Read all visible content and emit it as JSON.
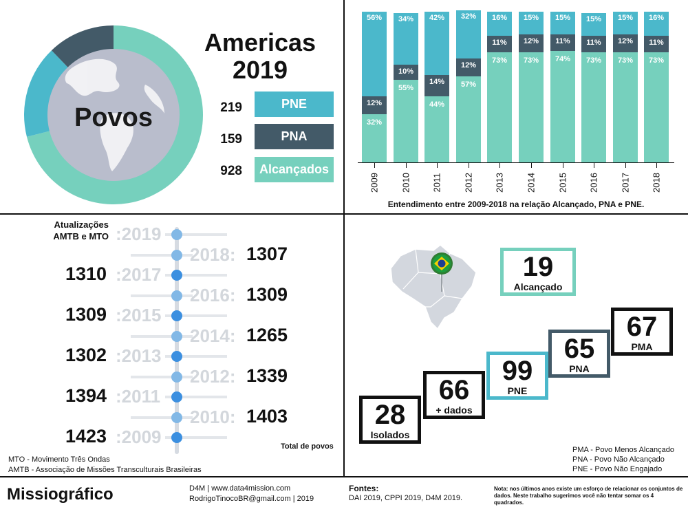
{
  "summary": {
    "title_line1": "Americas",
    "title_line2": "2019",
    "center_label": "Povos",
    "legend": [
      {
        "value": "219",
        "label": "PNE",
        "color": "#4bb8cb"
      },
      {
        "value": "159",
        "label": "PNA",
        "color": "#435a68"
      },
      {
        "value": "928",
        "label": "Alcançados",
        "color": "#76d0bd"
      }
    ]
  },
  "chart_data": {
    "type": "bar",
    "stacked": true,
    "categories": [
      "2009",
      "2010",
      "2011",
      "2012",
      "2013",
      "2014",
      "2015",
      "2016",
      "2017",
      "2018"
    ],
    "series": [
      {
        "name": "Alcançado",
        "values": [
          32,
          55,
          44,
          57,
          73,
          73,
          74,
          73,
          73,
          73
        ],
        "color": "#76d0bd"
      },
      {
        "name": "PNA",
        "values": [
          12,
          10,
          14,
          12,
          11,
          12,
          11,
          11,
          12,
          11
        ],
        "color": "#435a68"
      },
      {
        "name": "PNE",
        "values": [
          56,
          34,
          42,
          32,
          16,
          15,
          15,
          15,
          15,
          16
        ],
        "color": "#4bb8cb"
      }
    ],
    "caption": "Entendimento entre 2009-2018 na relação Alcançado, PNA e PNE.",
    "ylim": [
      0,
      100
    ]
  },
  "timeline": {
    "heading": "Atualizações AMTB e MTO",
    "entries": [
      {
        "year": ":2019",
        "value": "",
        "side": "left"
      },
      {
        "year": "2018:",
        "value": "1307",
        "side": "right"
      },
      {
        "year": ":2017",
        "value": "1310",
        "side": "left"
      },
      {
        "year": "2016:",
        "value": "1309",
        "side": "right"
      },
      {
        "year": ":2015",
        "value": "1309",
        "side": "left"
      },
      {
        "year": "2014:",
        "value": "1265",
        "side": "right"
      },
      {
        "year": ":2013",
        "value": "1302",
        "side": "left"
      },
      {
        "year": "2012:",
        "value": "1339",
        "side": "right"
      },
      {
        "year": ":2011",
        "value": "1394",
        "side": "left"
      },
      {
        "year": "2010:",
        "value": "1403",
        "side": "right"
      },
      {
        "year": ":2009",
        "value": "1423",
        "side": "left"
      }
    ],
    "total_label": "Total de povos",
    "notes": [
      "MTO - Movimento Três Ondas",
      "AMTB - Associação de Missões Transculturais Brasileiras"
    ]
  },
  "brazil": {
    "boxes": [
      {
        "value": "19",
        "label": "Alcançado",
        "color": "#76d0bd"
      },
      {
        "value": "28",
        "label": "Isolados",
        "color": "#111111"
      },
      {
        "value": "66",
        "label": "+ dados",
        "color": "#111111"
      },
      {
        "value": "99",
        "label": "PNE",
        "color": "#4bb8cb"
      },
      {
        "value": "65",
        "label": "PNA",
        "color": "#435a68"
      },
      {
        "value": "67",
        "label": "PMA",
        "color": "#111111"
      }
    ],
    "abbreviations": [
      "PMA - Povo Menos Alcançado",
      "PNA - Povo Não Alcançado",
      "PNE - Povo Não Engajado"
    ]
  },
  "footer": {
    "brand": "Missiográfico",
    "site": "D4M | www.data4mission.com",
    "contact": "RodrigoTinocoBR@gmail.com | 2019",
    "sources_title": "Fontes:",
    "sources": "DAI 2019, CPPI 2019, D4M 2019.",
    "note": "Nota: nos últimos anos existe um esforço de relacionar os conjuntos de dados. Neste trabalho sugerimos você não tentar somar os 4 quadrados."
  }
}
